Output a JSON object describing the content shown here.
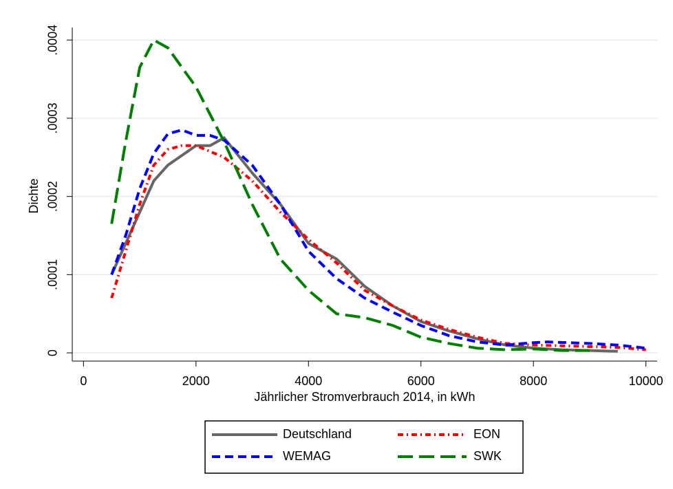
{
  "chart_data": {
    "type": "line",
    "ylabel": "Dichte",
    "xlabel": "Jährlicher Stromverbrauch 2014, in kWh",
    "xlim": [
      -200,
      10200
    ],
    "ylim": [
      -1.05e-05,
      0.000416
    ],
    "xticks": [
      0,
      2000,
      4000,
      6000,
      8000,
      10000
    ],
    "yticks": [
      0,
      {
        "value": 0.0001,
        "label": ".0001"
      },
      {
        "value": 0.0002,
        "label": ".0002"
      },
      {
        "value": 0.0003,
        "label": ".0003"
      },
      {
        "value": 0.0004,
        "label": ".0004"
      }
    ],
    "grid": true,
    "legend": "bottom",
    "series": [
      {
        "name": "Deutschland",
        "color": "#666666",
        "style": "solid",
        "x": [
          500,
          750,
          1000,
          1250,
          1500,
          2000,
          2250,
          2500,
          3000,
          3500,
          4000,
          4500,
          5000,
          5500,
          6000,
          6500,
          7000,
          7500,
          8000,
          8500,
          9000,
          9500
        ],
        "values": [
          0.0001,
          0.00014,
          0.00018,
          0.00022,
          0.00024,
          0.000265,
          0.000265,
          0.000275,
          0.00023,
          0.00019,
          0.00014,
          0.00012,
          8.5e-05,
          6e-05,
          4e-05,
          2.8e-05,
          1.8e-05,
          1e-05,
          6e-06,
          4e-06,
          3e-06,
          2e-06
        ]
      },
      {
        "name": "EON",
        "color": "#ff0000",
        "style": "dashdot",
        "x": [
          500,
          750,
          1000,
          1250,
          1500,
          1750,
          2000,
          2500,
          3000,
          3500,
          4000,
          4500,
          5000,
          5500,
          6000,
          6500,
          7000,
          7500,
          8000,
          8500,
          9000,
          9500,
          10000
        ],
        "values": [
          7e-05,
          0.00013,
          0.00019,
          0.00024,
          0.00026,
          0.000265,
          0.000265,
          0.00025,
          0.00022,
          0.00018,
          0.000145,
          0.000115,
          8e-05,
          6e-05,
          4.2e-05,
          3e-05,
          2e-05,
          1.2e-05,
          1e-05,
          9e-06,
          8e-06,
          7e-06,
          4e-06
        ]
      },
      {
        "name": "WEMAG",
        "color": "#0000ff",
        "style": "dash",
        "x": [
          500,
          750,
          1000,
          1250,
          1500,
          1750,
          2000,
          2250,
          2500,
          3000,
          3500,
          4000,
          4500,
          5000,
          5500,
          6000,
          6500,
          7000,
          7500,
          8000,
          8250,
          9000,
          9500,
          10000
        ],
        "values": [
          0.0001,
          0.00015,
          0.00021,
          0.000255,
          0.00028,
          0.000285,
          0.000278,
          0.000278,
          0.000272,
          0.00024,
          0.00019,
          0.00013,
          9.5e-05,
          7e-05,
          5.2e-05,
          3.5e-05,
          2.2e-05,
          1.4e-05,
          1e-05,
          1.3e-05,
          1.4e-05,
          1.2e-05,
          1e-05,
          6e-06
        ]
      },
      {
        "name": "SWK",
        "color": "#008000",
        "style": "longdash",
        "x": [
          500,
          750,
          1000,
          1250,
          1500,
          2000,
          2500,
          3000,
          3500,
          4000,
          4500,
          5000,
          5500,
          6000,
          6500,
          7000,
          7500,
          8000,
          8500,
          9000
        ],
        "values": [
          0.000165,
          0.00027,
          0.000365,
          0.0004,
          0.00039,
          0.00034,
          0.00027,
          0.00019,
          0.00012,
          8e-05,
          5e-05,
          4.5e-05,
          3.5e-05,
          2e-05,
          1.2e-05,
          6e-06,
          4e-06,
          5e-06,
          3e-06,
          3e-06
        ]
      }
    ]
  }
}
